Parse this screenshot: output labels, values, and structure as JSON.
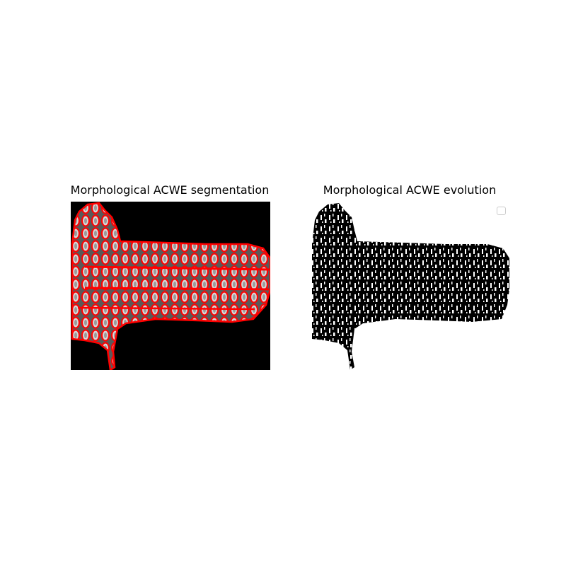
{
  "figure": {
    "left_title": "Morphological ACWE segmentation",
    "right_title": "Morphological ACWE evolution"
  },
  "colors": {
    "background": "#ffffff",
    "image_background": "#000000",
    "contour": "#ff0000",
    "mask_foreground": "#000000",
    "mask_speckle": "#ffffff",
    "legend_border": "#cccccc"
  }
}
